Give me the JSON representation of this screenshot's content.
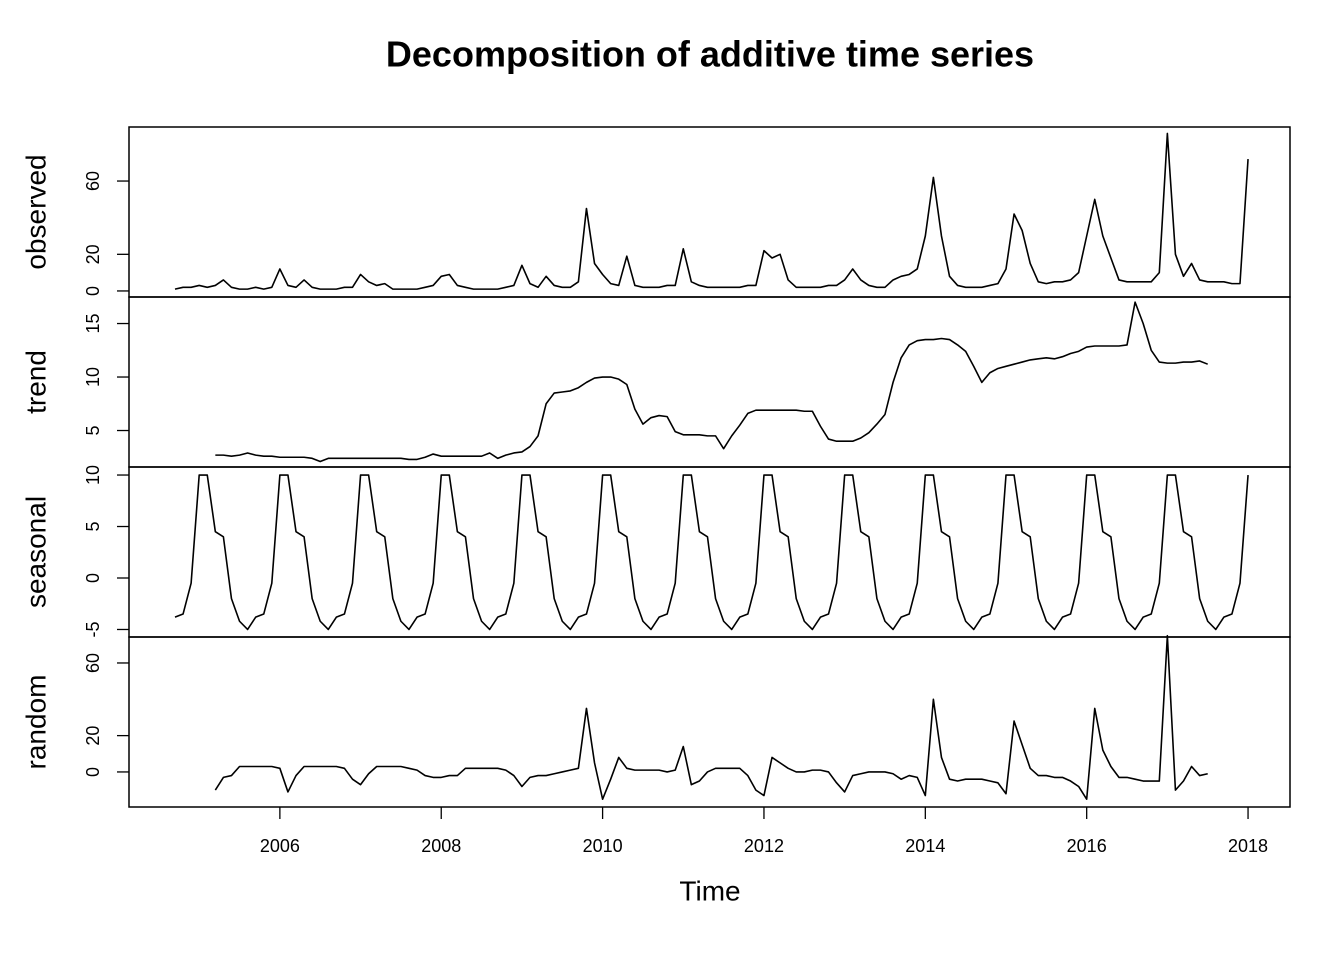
{
  "title": "Decomposition of additive time series",
  "xlabel": "Time",
  "chart_data": [
    {
      "type": "line",
      "ylabel": "observed",
      "color": "#000000",
      "xlim": [
        2004.13,
        2018.52
      ],
      "ylim": [
        -3.3,
        89.5
      ],
      "yticks": [
        0,
        20,
        60
      ],
      "x": [
        2004.7,
        2004.8,
        2004.9,
        2005,
        2005.1,
        2005.2,
        2005.3,
        2005.4,
        2005.5,
        2005.6,
        2005.7,
        2005.8,
        2005.9,
        2006,
        2006.1,
        2006.2,
        2006.3,
        2006.4,
        2006.5,
        2006.6,
        2006.7,
        2006.8,
        2006.9,
        2007,
        2007.1,
        2007.2,
        2007.3,
        2007.4,
        2007.5,
        2007.6,
        2007.7,
        2007.8,
        2007.9,
        2008,
        2008.1,
        2008.2,
        2008.3,
        2008.4,
        2008.5,
        2008.6,
        2008.7,
        2008.8,
        2008.9,
        2009,
        2009.1,
        2009.2,
        2009.3,
        2009.4,
        2009.5,
        2009.6,
        2009.7,
        2009.8,
        2009.9,
        2010,
        2010.1,
        2010.2,
        2010.3,
        2010.4,
        2010.5,
        2010.6,
        2010.7,
        2010.8,
        2010.9,
        2011,
        2011.1,
        2011.2,
        2011.3,
        2011.4,
        2011.5,
        2011.6,
        2011.7,
        2011.8,
        2011.9,
        2012,
        2012.1,
        2012.2,
        2012.3,
        2012.4,
        2012.5,
        2012.6,
        2012.7,
        2012.8,
        2012.9,
        2013,
        2013.1,
        2013.2,
        2013.3,
        2013.4,
        2013.5,
        2013.6,
        2013.7,
        2013.8,
        2013.9,
        2014,
        2014.1,
        2014.2,
        2014.3,
        2014.4,
        2014.5,
        2014.6,
        2014.7,
        2014.8,
        2014.9,
        2015,
        2015.1,
        2015.2,
        2015.3,
        2015.4,
        2015.5,
        2015.6,
        2015.7,
        2015.8,
        2015.9,
        2016,
        2016.1,
        2016.2,
        2016.3,
        2016.4,
        2016.5,
        2016.6,
        2016.7,
        2016.8,
        2016.9,
        2017,
        2017.1,
        2017.2,
        2017.3,
        2017.4,
        2017.5,
        2017.6,
        2017.7,
        2017.8,
        2017.9,
        2018
      ],
      "values": [
        1,
        2,
        2,
        3,
        2,
        3,
        6,
        2,
        1,
        1,
        2,
        1,
        2,
        12,
        3,
        2,
        6,
        2,
        1,
        1,
        1,
        2,
        2,
        9,
        5,
        3,
        4,
        1,
        1,
        1,
        1,
        2,
        3,
        8,
        9,
        3,
        2,
        1,
        1,
        1,
        1,
        2,
        3,
        14,
        4,
        2,
        8,
        3,
        2,
        2,
        5,
        45,
        15,
        9,
        4,
        3,
        19,
        3,
        2,
        2,
        2,
        3,
        3,
        23,
        5,
        3,
        2,
        2,
        2,
        2,
        2,
        3,
        3,
        22,
        18,
        20,
        6,
        2,
        2,
        2,
        2,
        3,
        3,
        6,
        12,
        6,
        3,
        2,
        2,
        6,
        8,
        9,
        12,
        30,
        62,
        30,
        8,
        3,
        2,
        2,
        2,
        3,
        4,
        12,
        42,
        33,
        15,
        5,
        4,
        5,
        5,
        6,
        10,
        30,
        50,
        30,
        18,
        6,
        5,
        5,
        5,
        5,
        10,
        86,
        20,
        8,
        15,
        6,
        5,
        5,
        5,
        4,
        4,
        72
      ]
    },
    {
      "type": "line",
      "ylabel": "trend",
      "color": "#000000",
      "xlim": [
        2004.13,
        2018.52
      ],
      "ylim": [
        1.59,
        17.48
      ],
      "yticks": [
        5,
        10,
        15
      ],
      "x": [
        2005.2,
        2005.3,
        2005.4,
        2005.5,
        2005.6,
        2005.7,
        2005.8,
        2005.9,
        2006,
        2006.1,
        2006.2,
        2006.3,
        2006.4,
        2006.5,
        2006.6,
        2006.7,
        2006.8,
        2006.9,
        2007,
        2007.1,
        2007.2,
        2007.3,
        2007.4,
        2007.5,
        2007.6,
        2007.7,
        2007.8,
        2007.9,
        2008,
        2008.1,
        2008.2,
        2008.3,
        2008.4,
        2008.5,
        2008.6,
        2008.7,
        2008.8,
        2008.9,
        2009,
        2009.1,
        2009.2,
        2009.3,
        2009.4,
        2009.5,
        2009.6,
        2009.7,
        2009.8,
        2009.9,
        2010,
        2010.1,
        2010.2,
        2010.3,
        2010.4,
        2010.5,
        2010.6,
        2010.7,
        2010.8,
        2010.9,
        2011,
        2011.1,
        2011.2,
        2011.3,
        2011.4,
        2011.5,
        2011.6,
        2011.7,
        2011.8,
        2011.9,
        2012,
        2012.1,
        2012.2,
        2012.3,
        2012.4,
        2012.5,
        2012.6,
        2012.7,
        2012.8,
        2012.9,
        2013,
        2013.1,
        2013.2,
        2013.3,
        2013.4,
        2013.5,
        2013.6,
        2013.7,
        2013.8,
        2013.9,
        2014,
        2014.1,
        2014.2,
        2014.3,
        2014.4,
        2014.5,
        2014.6,
        2014.7,
        2014.8,
        2014.9,
        2015,
        2015.1,
        2015.2,
        2015.3,
        2015.4,
        2015.5,
        2015.6,
        2015.7,
        2015.8,
        2015.9,
        2016,
        2016.1,
        2016.2,
        2016.3,
        2016.4,
        2016.5,
        2016.6,
        2016.7,
        2016.8,
        2016.9,
        2017,
        2017.1,
        2017.2,
        2017.3,
        2017.4,
        2017.5
      ],
      "values": [
        2.7,
        2.7,
        2.6,
        2.7,
        2.9,
        2.7,
        2.6,
        2.6,
        2.5,
        2.5,
        2.5,
        2.5,
        2.4,
        2.1,
        2.4,
        2.4,
        2.4,
        2.4,
        2.4,
        2.4,
        2.4,
        2.4,
        2.4,
        2.4,
        2.3,
        2.3,
        2.5,
        2.8,
        2.6,
        2.6,
        2.6,
        2.6,
        2.6,
        2.6,
        2.9,
        2.4,
        2.7,
        2.9,
        3.0,
        3.5,
        4.5,
        7.5,
        8.5,
        8.6,
        8.7,
        9.0,
        9.5,
        9.9,
        10.0,
        10.0,
        9.8,
        9.3,
        7.0,
        5.6,
        6.2,
        6.4,
        6.3,
        4.9,
        4.6,
        4.6,
        4.6,
        4.5,
        4.5,
        3.3,
        4.5,
        5.5,
        6.6,
        6.9,
        6.9,
        6.9,
        6.9,
        6.9,
        6.9,
        6.8,
        6.8,
        5.4,
        4.2,
        4.0,
        4.0,
        4.0,
        4.3,
        4.8,
        5.6,
        6.5,
        9.5,
        11.8,
        13.0,
        13.4,
        13.5,
        13.5,
        13.6,
        13.5,
        13.0,
        12.4,
        11.0,
        9.5,
        10.4,
        10.8,
        11.0,
        11.2,
        11.4,
        11.6,
        11.7,
        11.8,
        11.7,
        11.9,
        12.2,
        12.4,
        12.8,
        12.9,
        12.9,
        12.9,
        12.9,
        13.0,
        17.0,
        15.0,
        12.5,
        11.4,
        11.3,
        11.3,
        11.4,
        11.4,
        11.5,
        11.2
      ]
    },
    {
      "type": "line",
      "ylabel": "seasonal",
      "color": "#000000",
      "xlim": [
        2004.13,
        2018.52
      ],
      "ylim": [
        -5.73,
        10.78
      ],
      "yticks": [
        -5,
        0,
        5,
        10
      ],
      "x": [
        2004.7,
        2004.8,
        2004.9,
        2005,
        2005.1,
        2005.2,
        2005.3,
        2005.4,
        2005.5,
        2005.6,
        2005.7,
        2005.8,
        2005.9,
        2006,
        2006.1,
        2006.2,
        2006.3,
        2006.4,
        2006.5,
        2006.6,
        2006.7,
        2006.8,
        2006.9,
        2007,
        2007.1,
        2007.2,
        2007.3,
        2007.4,
        2007.5,
        2007.6,
        2007.7,
        2007.8,
        2007.9,
        2008,
        2008.1,
        2008.2,
        2008.3,
        2008.4,
        2008.5,
        2008.6,
        2008.7,
        2008.8,
        2008.9,
        2009,
        2009.1,
        2009.2,
        2009.3,
        2009.4,
        2009.5,
        2009.6,
        2009.7,
        2009.8,
        2009.9,
        2010,
        2010.1,
        2010.2,
        2010.3,
        2010.4,
        2010.5,
        2010.6,
        2010.7,
        2010.8,
        2010.9,
        2011,
        2011.1,
        2011.2,
        2011.3,
        2011.4,
        2011.5,
        2011.6,
        2011.7,
        2011.8,
        2011.9,
        2012,
        2012.1,
        2012.2,
        2012.3,
        2012.4,
        2012.5,
        2012.6,
        2012.7,
        2012.8,
        2012.9,
        2013,
        2013.1,
        2013.2,
        2013.3,
        2013.4,
        2013.5,
        2013.6,
        2013.7,
        2013.8,
        2013.9,
        2014,
        2014.1,
        2014.2,
        2014.3,
        2014.4,
        2014.5,
        2014.6,
        2014.7,
        2014.8,
        2014.9,
        2015,
        2015.1,
        2015.2,
        2015.3,
        2015.4,
        2015.5,
        2015.6,
        2015.7,
        2015.8,
        2015.9,
        2016,
        2016.1,
        2016.2,
        2016.3,
        2016.4,
        2016.5,
        2016.6,
        2016.7,
        2016.8,
        2016.9,
        2017,
        2017.1,
        2017.2,
        2017.3,
        2017.4,
        2017.5,
        2017.6,
        2017.7,
        2017.8,
        2017.9,
        2018
      ],
      "values": [
        -3.8,
        -3.5,
        -0.5,
        10,
        10,
        4.5,
        4,
        -2,
        -4.2,
        -5,
        -3.8,
        -3.5,
        -0.5,
        10,
        10,
        4.5,
        4,
        -2,
        -4.2,
        -5,
        -3.8,
        -3.5,
        -0.5,
        10,
        10,
        4.5,
        4,
        -2,
        -4.2,
        -5,
        -3.8,
        -3.5,
        -0.5,
        10,
        10,
        4.5,
        4,
        -2,
        -4.2,
        -5,
        -3.8,
        -3.5,
        -0.5,
        10,
        10,
        4.5,
        4,
        -2,
        -4.2,
        -5,
        -3.8,
        -3.5,
        -0.5,
        10,
        10,
        4.5,
        4,
        -2,
        -4.2,
        -5,
        -3.8,
        -3.5,
        -0.5,
        10,
        10,
        4.5,
        4,
        -2,
        -4.2,
        -5,
        -3.8,
        -3.5,
        -0.5,
        10,
        10,
        4.5,
        4,
        -2,
        -4.2,
        -5,
        -3.8,
        -3.5,
        -0.5,
        10,
        10,
        4.5,
        4,
        -2,
        -4.2,
        -5,
        -3.8,
        -3.5,
        -0.5,
        10,
        10,
        4.5,
        4,
        -2,
        -4.2,
        -5,
        -3.8,
        -3.5,
        -0.5,
        10,
        10,
        4.5,
        4,
        -2,
        -4.2,
        -5,
        -3.8,
        -3.5,
        -0.5,
        10,
        10,
        4.5,
        4,
        -2,
        -4.2,
        -5,
        -3.8,
        -3.5,
        -0.5,
        10,
        10,
        4.5,
        4,
        -2,
        -4.2,
        -5,
        -3.8,
        -3.5,
        -0.5,
        10
      ]
    },
    {
      "type": "line",
      "ylabel": "random",
      "color": "#000000",
      "xlim": [
        2004.13,
        2018.52
      ],
      "ylim": [
        -19.3,
        74.3
      ],
      "yticks": [
        0,
        20,
        60
      ],
      "xticks": [
        2006,
        2008,
        2010,
        2012,
        2014,
        2016,
        2018
      ],
      "x": [
        2005.2,
        2005.3,
        2005.4,
        2005.5,
        2005.6,
        2005.7,
        2005.8,
        2005.9,
        2006,
        2006.1,
        2006.2,
        2006.3,
        2006.4,
        2006.5,
        2006.6,
        2006.7,
        2006.8,
        2006.9,
        2007,
        2007.1,
        2007.2,
        2007.3,
        2007.4,
        2007.5,
        2007.6,
        2007.7,
        2007.8,
        2007.9,
        2008,
        2008.1,
        2008.2,
        2008.3,
        2008.4,
        2008.5,
        2008.6,
        2008.7,
        2008.8,
        2008.9,
        2009,
        2009.1,
        2009.2,
        2009.3,
        2009.4,
        2009.5,
        2009.6,
        2009.7,
        2009.8,
        2009.9,
        2010,
        2010.1,
        2010.2,
        2010.3,
        2010.4,
        2010.5,
        2010.6,
        2010.7,
        2010.8,
        2010.9,
        2011,
        2011.1,
        2011.2,
        2011.3,
        2011.4,
        2011.5,
        2011.6,
        2011.7,
        2011.8,
        2011.9,
        2012,
        2012.1,
        2012.2,
        2012.3,
        2012.4,
        2012.5,
        2012.6,
        2012.7,
        2012.8,
        2012.9,
        2013,
        2013.1,
        2013.2,
        2013.3,
        2013.4,
        2013.5,
        2013.6,
        2013.7,
        2013.8,
        2013.9,
        2014,
        2014.1,
        2014.2,
        2014.3,
        2014.4,
        2014.5,
        2014.6,
        2014.7,
        2014.8,
        2014.9,
        2015,
        2015.1,
        2015.2,
        2015.3,
        2015.4,
        2015.5,
        2015.6,
        2015.7,
        2015.8,
        2015.9,
        2016,
        2016.1,
        2016.2,
        2016.3,
        2016.4,
        2016.5,
        2016.6,
        2016.7,
        2016.8,
        2016.9,
        2017,
        2017.1,
        2017.2,
        2017.3,
        2017.4,
        2017.5
      ],
      "values": [
        -10,
        -3,
        -2,
        3,
        3,
        3,
        3,
        3,
        2,
        -11,
        -2,
        3,
        3,
        3,
        3,
        3,
        2,
        -4,
        -7,
        -1,
        3,
        3,
        3,
        3,
        2,
        1,
        -2,
        -3,
        -3,
        -2,
        -2,
        2,
        2,
        2,
        2,
        2,
        1,
        -2,
        -8,
        -3,
        -2,
        -2,
        -1,
        0,
        1,
        2,
        35,
        5,
        -15,
        -4,
        8,
        2,
        1,
        1,
        1,
        1,
        0,
        1,
        14,
        -7,
        -5,
        0,
        2,
        2,
        2,
        2,
        -2,
        -10,
        -13,
        8,
        5,
        2,
        0,
        0,
        1,
        1,
        0,
        -6,
        -11,
        -2,
        -1,
        0,
        0,
        0,
        -1,
        -4,
        -2,
        -3,
        -13,
        40,
        8,
        -4,
        -5,
        -4,
        -4,
        -4,
        -5,
        -6,
        -12,
        28,
        15,
        2,
        -2,
        -2,
        -3,
        -3,
        -5,
        -8,
        -15,
        35,
        12,
        3,
        -3,
        -3,
        -4,
        -5,
        -5,
        -5,
        75,
        -10,
        -5,
        3,
        -2,
        -1
      ]
    }
  ]
}
